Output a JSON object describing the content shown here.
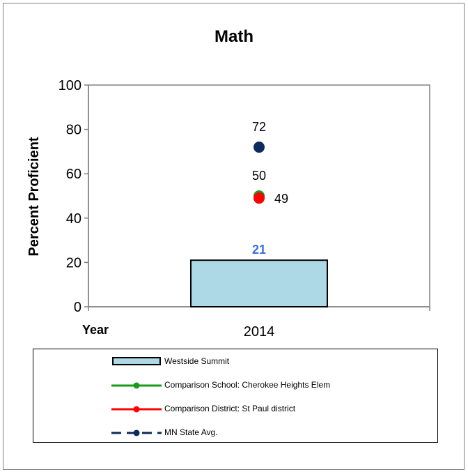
{
  "chart_data": {
    "type": "bar",
    "title": "Math",
    "xlabel": "Year",
    "ylabel": "Percent Proficient",
    "categories": [
      "2014"
    ],
    "ylim": [
      0,
      100
    ],
    "yticks": [
      0,
      20,
      40,
      60,
      80,
      100
    ],
    "grid": false,
    "legend_placement": "bottom",
    "series": [
      {
        "name": "Westside Summit",
        "kind": "bar",
        "values": [
          21
        ],
        "color": "#add8e6",
        "label_color": "#3b6fe0"
      },
      {
        "name": "Comparison School: Cherokee Heights Elem",
        "kind": "point",
        "values": [
          50
        ],
        "color": "#1a9a1a"
      },
      {
        "name": "Comparison District: St Paul district",
        "kind": "point",
        "values": [
          49
        ],
        "color": "#ff0000"
      },
      {
        "name": "MN State Avg.",
        "kind": "point",
        "values": [
          72
        ],
        "color": "#0d2a5c"
      }
    ]
  }
}
